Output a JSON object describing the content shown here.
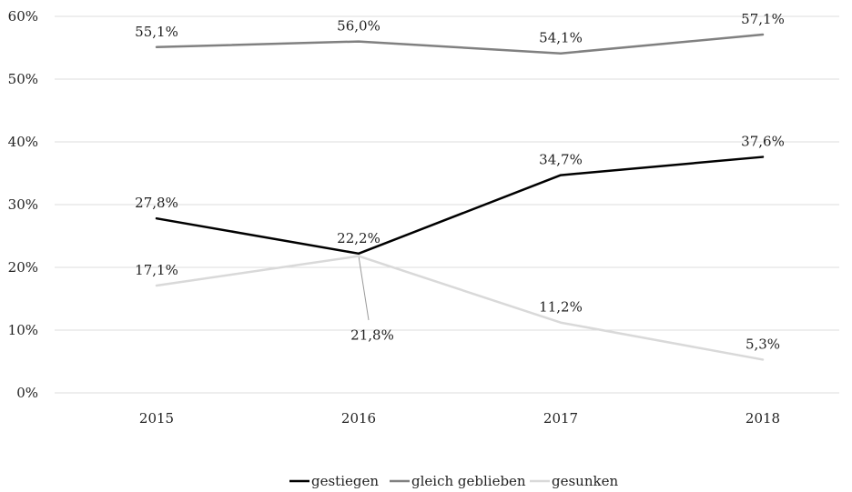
{
  "chart_data": {
    "type": "line",
    "categories": [
      "2015",
      "2016",
      "2017",
      "2018"
    ],
    "ylim": [
      0,
      60
    ],
    "yticks": [
      0,
      10,
      20,
      30,
      40,
      50,
      60
    ],
    "ytick_labels": [
      "0%",
      "10%",
      "20%",
      "30%",
      "40%",
      "50%",
      "60%"
    ],
    "grid": "horizontal",
    "legend_position": "bottom",
    "series": [
      {
        "name": "gestiegen",
        "color": "#000000",
        "values": [
          27.8,
          22.2,
          34.7,
          37.6
        ],
        "labels": [
          "27,8%",
          "22,2%",
          "34,7%",
          "37,6%"
        ]
      },
      {
        "name": "gleich geblieben",
        "color": "#808080",
        "values": [
          55.1,
          56.0,
          54.1,
          57.1
        ],
        "labels": [
          "55,1%",
          "56,0%",
          "54,1%",
          "57,1%"
        ]
      },
      {
        "name": "gesunken",
        "color": "#d9d9d9",
        "values": [
          17.1,
          21.8,
          11.2,
          5.3
        ],
        "labels": [
          "17,1%",
          "21,8%",
          "11,2%",
          "5,3%"
        ]
      }
    ]
  }
}
